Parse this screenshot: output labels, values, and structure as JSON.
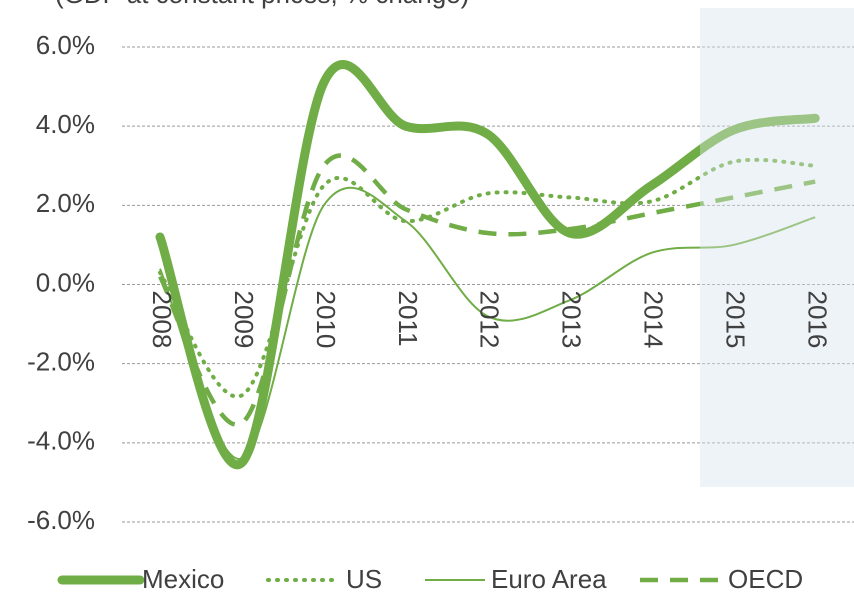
{
  "chart_data": {
    "type": "line",
    "subtitle": "(GDP at constant prices, % change)",
    "categories": [
      "2008",
      "2009",
      "2010",
      "2011",
      "2012",
      "2013",
      "2014",
      "2015",
      "2016"
    ],
    "series": [
      {
        "name": "Mexico",
        "color": "#70ad47",
        "line_style": "thick",
        "values": [
          1.2,
          -4.5,
          5.1,
          4.0,
          3.8,
          1.3,
          2.5,
          3.9,
          4.2
        ]
      },
      {
        "name": "US",
        "color": "#70ad47",
        "line_style": "dotted",
        "values": [
          0.3,
          -2.8,
          2.5,
          1.6,
          2.3,
          2.2,
          2.1,
          3.1,
          3.0
        ]
      },
      {
        "name": "Euro Area",
        "color": "#70ad47",
        "line_style": "thin",
        "values": [
          0.4,
          -4.4,
          2.0,
          1.6,
          -0.8,
          -0.4,
          0.8,
          1.0,
          1.7
        ]
      },
      {
        "name": "OECD",
        "color": "#70ad47",
        "line_style": "dashed",
        "values": [
          0.2,
          -3.5,
          3.0,
          1.9,
          1.3,
          1.4,
          1.8,
          2.2,
          2.6
        ]
      }
    ],
    "ylim": [
      -6,
      6
    ],
    "yticks": [
      {
        "value": -6,
        "label": "-6.0%"
      },
      {
        "value": -4,
        "label": "-4.0%"
      },
      {
        "value": -2,
        "label": "-2.0%"
      },
      {
        "value": 0,
        "label": "0.0%"
      },
      {
        "value": 2,
        "label": "2.0%"
      },
      {
        "value": 4,
        "label": "4.0%"
      },
      {
        "value": 6,
        "label": "6.0%"
      }
    ],
    "grid": true,
    "legend": "bottom"
  }
}
